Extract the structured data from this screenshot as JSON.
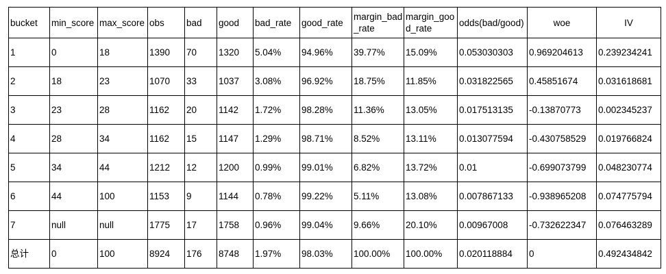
{
  "table": {
    "headers": [
      "bucket",
      "min_score",
      "max_score",
      "obs",
      "bad",
      "good",
      "bad_rate",
      "good_rate",
      "margin_bad_rate",
      "margin_good_rate",
      "odds(bad/good)",
      "woe",
      "IV"
    ],
    "rows": [
      [
        "1",
        "0",
        "18",
        "1390",
        "70",
        "1320",
        "5.04%",
        "94.96%",
        "39.77%",
        "15.09%",
        "0.053030303",
        "0.969204613",
        "0.239234241"
      ],
      [
        "2",
        "18",
        "23",
        "1070",
        "33",
        "1037",
        "3.08%",
        "96.92%",
        "18.75%",
        "11.85%",
        "0.031822565",
        "0.45851674",
        "0.031618681"
      ],
      [
        "3",
        "23",
        "28",
        "1162",
        "20",
        "1142",
        "1.72%",
        "98.28%",
        "11.36%",
        "13.05%",
        "0.017513135",
        "-0.13870773",
        "0.002345237"
      ],
      [
        "4",
        "28",
        "34",
        "1162",
        "15",
        "1147",
        "1.29%",
        "98.71%",
        "8.52%",
        "13.11%",
        "0.013077594",
        "-0.430758529",
        "0.019766824"
      ],
      [
        "5",
        "34",
        "44",
        "1212",
        "12",
        "1200",
        "0.99%",
        "99.01%",
        "6.82%",
        "13.72%",
        "0.01",
        "-0.699073799",
        "0.048230774"
      ],
      [
        "6",
        "44",
        "100",
        "1153",
        "9",
        "1144",
        "0.78%",
        "99.22%",
        "5.11%",
        "13.08%",
        "0.007867133",
        "-0.938965208",
        "0.074775794"
      ],
      [
        "7",
        "null",
        "null",
        "1775",
        "17",
        "1758",
        "0.96%",
        "99.04%",
        "9.66%",
        "20.10%",
        "0.00967008",
        "-0.732622347",
        "0.076463289"
      ],
      [
        "总计",
        "0",
        "100",
        "8924",
        "176",
        "8748",
        "1.97%",
        "98.03%",
        "100.00%",
        "100.00%",
        "0.020118884",
        "0",
        "0.492434842"
      ]
    ]
  }
}
